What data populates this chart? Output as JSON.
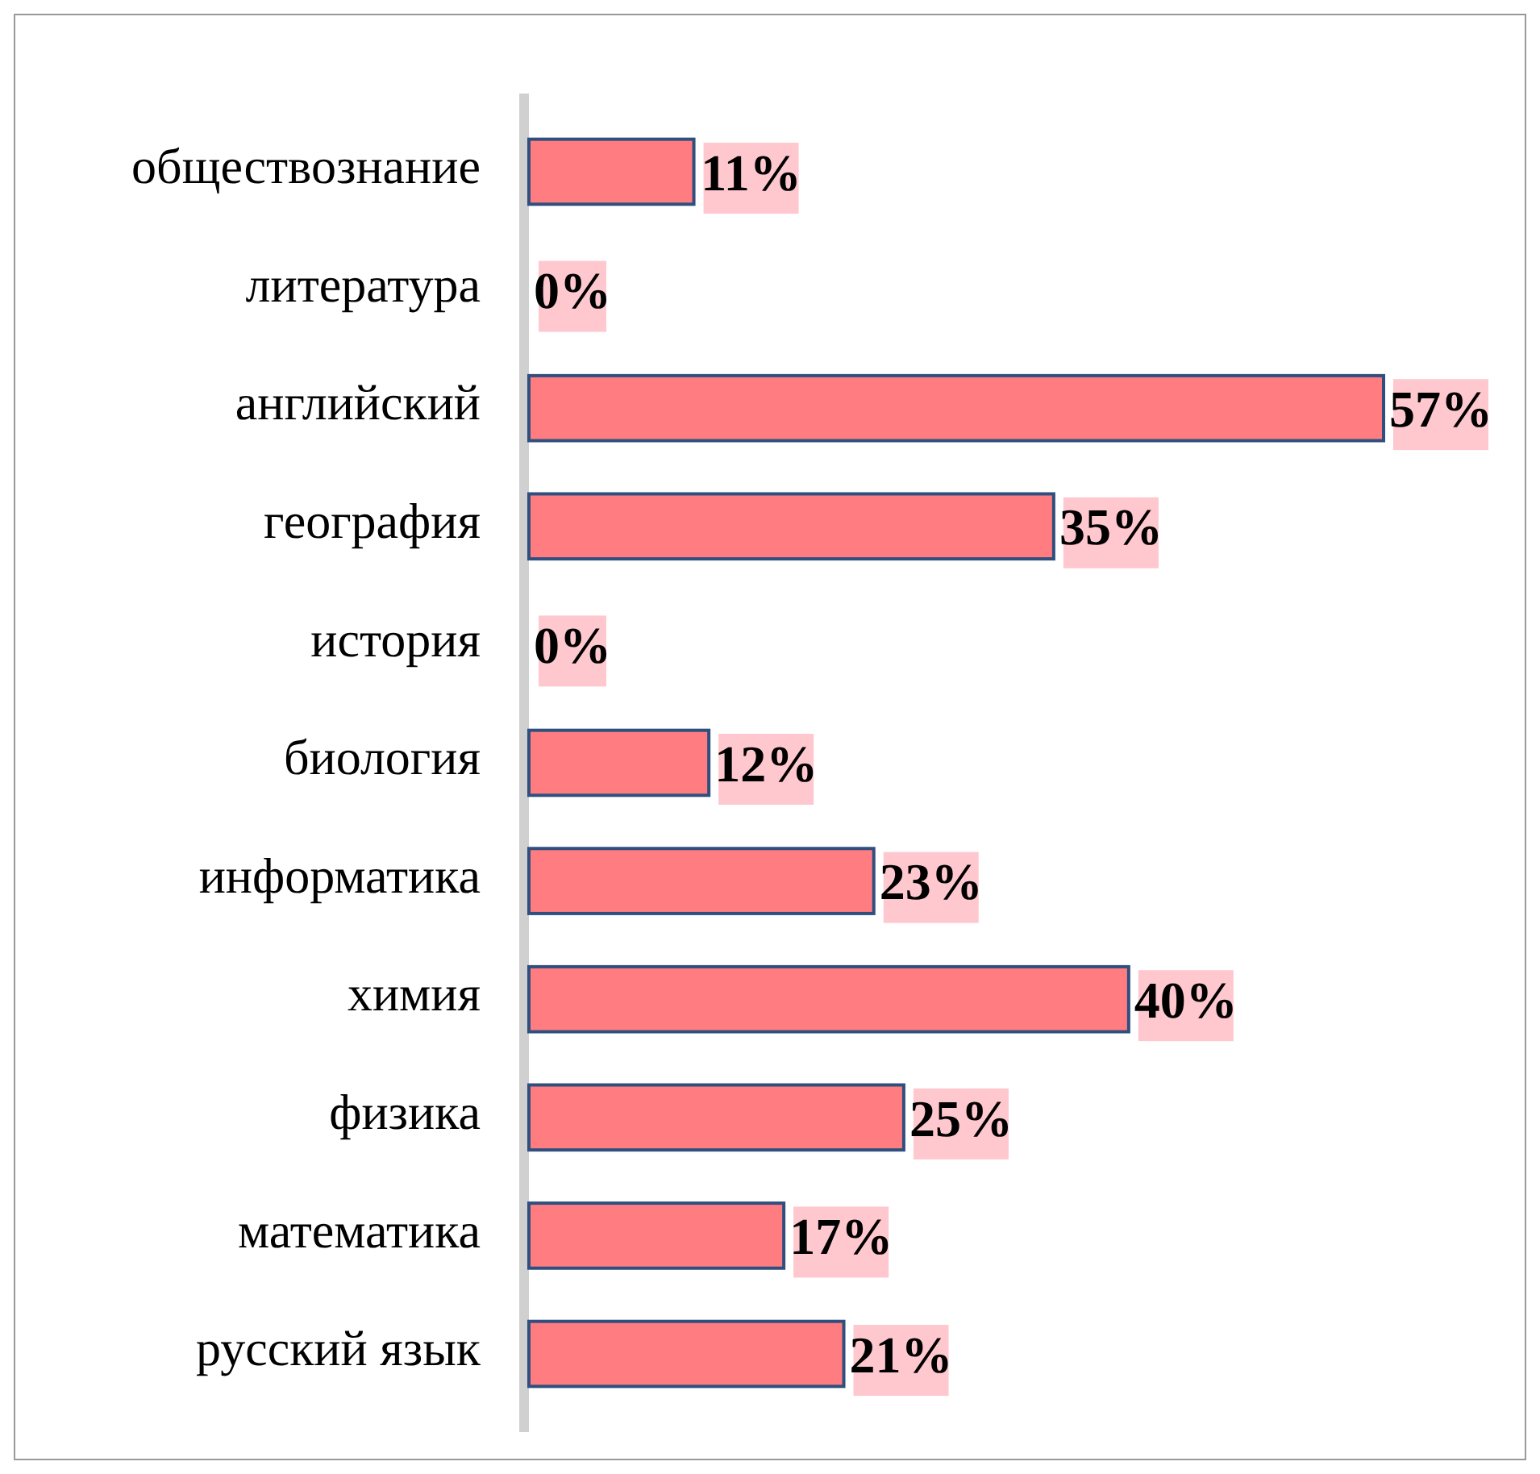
{
  "chart_data": {
    "type": "bar",
    "orientation": "horizontal",
    "categories": [
      "обществознание",
      "литература",
      "английский",
      "география",
      "история",
      "биология",
      "информатика",
      "химия",
      "физика",
      "математика",
      "русский язык"
    ],
    "values": [
      11,
      0,
      57,
      35,
      0,
      12,
      23,
      40,
      25,
      17,
      21
    ],
    "value_labels": [
      "11%",
      "0%",
      "57%",
      "35%",
      "0%",
      "12%",
      "23%",
      "40%",
      "25%",
      "17%",
      "21%"
    ],
    "color": "#ff7c80"
  }
}
